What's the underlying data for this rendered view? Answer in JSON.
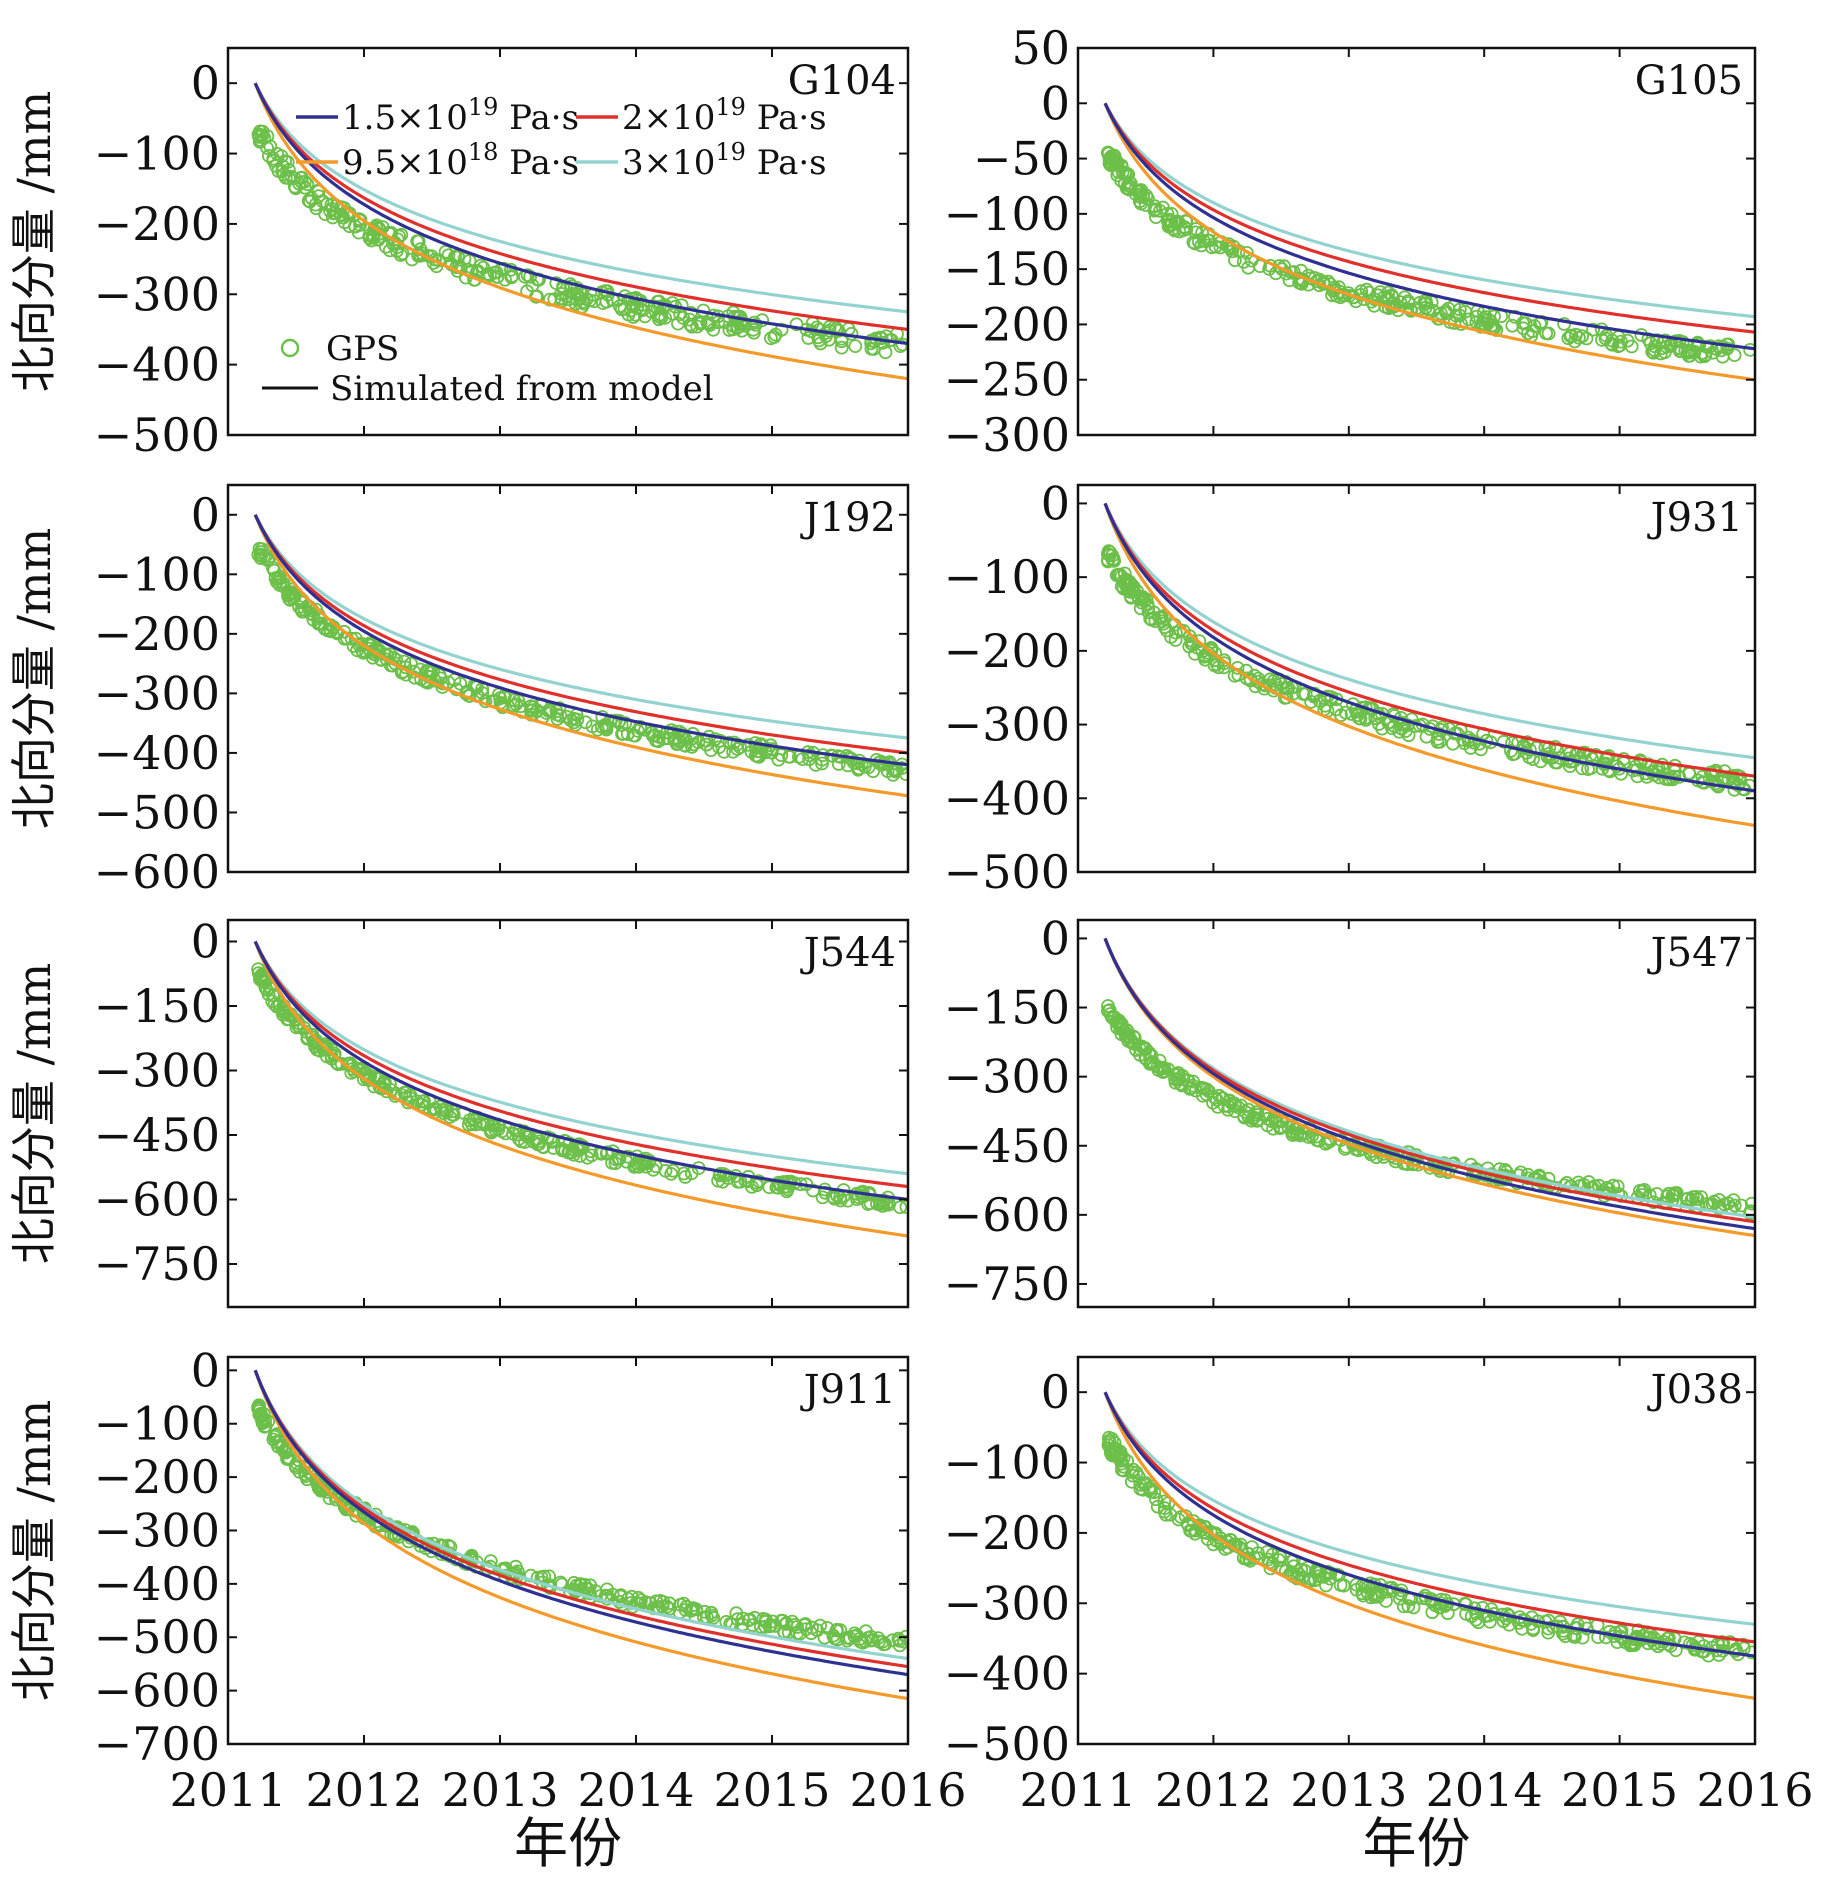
{
  "chart_data": {
    "type": "line",
    "xlabel": "年份",
    "ylabel": "北向分量 /mm",
    "x_ticks": [
      "2011",
      "2012",
      "2013",
      "2014",
      "2015",
      "2016"
    ],
    "xlim": [
      2011,
      2016
    ],
    "event_start": 2011.2,
    "legend": {
      "placement": "top-left of panel G104",
      "entries": [
        {
          "key": "v15e19",
          "base": "1.5×10",
          "exp": "19",
          "unit": " Pa·s",
          "color": "#2e3192"
        },
        {
          "key": "v2e19",
          "base": "2×10",
          "exp": "19",
          "unit": " Pa·s",
          "color": "#e0302c"
        },
        {
          "key": "v95e18",
          "base": "9.5×10",
          "exp": "18",
          "unit": " Pa·s",
          "color": "#f39a2b"
        },
        {
          "key": "v3e19",
          "base": "3×10",
          "exp": "19",
          "unit": " Pa·s",
          "color": "#93d3cf"
        },
        {
          "key": "gps",
          "label": "GPS",
          "color": "#6cc04a"
        },
        {
          "key": "model",
          "label": "Simulated from model",
          "color": "#111111"
        }
      ]
    },
    "panels": [
      {
        "name": "G104",
        "yticks": [
          0,
          -100,
          -200,
          -300,
          -400,
          -500
        ],
        "ylim": [
          -500,
          50
        ],
        "series": {
          "v15e19": -370,
          "v2e19": -350,
          "v95e18": -420,
          "v3e19": -325
        },
        "gps": {
          "start": -60,
          "end": -372,
          "scatter": 15
        }
      },
      {
        "name": "G105",
        "yticks": [
          50,
          0,
          -50,
          -100,
          -150,
          -200,
          -250,
          -300
        ],
        "ylim": [
          -300,
          50
        ],
        "series": {
          "v15e19": -222,
          "v2e19": -207,
          "v95e18": -250,
          "v3e19": -193
        },
        "gps": {
          "start": -40,
          "end": -228,
          "scatter": 8
        }
      },
      {
        "name": "J192",
        "yticks": [
          0,
          -100,
          -200,
          -300,
          -400,
          -500,
          -600
        ],
        "ylim": [
          -600,
          50
        ],
        "series": {
          "v15e19": -420,
          "v2e19": -400,
          "v95e18": -472,
          "v3e19": -375
        },
        "gps": {
          "start": -45,
          "end": -428,
          "scatter": 12
        }
      },
      {
        "name": "J931",
        "yticks": [
          0,
          -100,
          -200,
          -300,
          -400,
          -500
        ],
        "ylim": [
          -500,
          25
        ],
        "series": {
          "v15e19": -390,
          "v2e19": -370,
          "v95e18": -437,
          "v3e19": -345
        },
        "gps": {
          "start": -60,
          "end": -380,
          "scatter": 12
        }
      },
      {
        "name": "J544",
        "yticks": [
          0,
          -150,
          -300,
          -450,
          -600,
          -750
        ],
        "ylim": [
          -850,
          50
        ],
        "series": {
          "v15e19": -600,
          "v2e19": -570,
          "v95e18": -685,
          "v3e19": -540
        },
        "gps": {
          "start": -55,
          "end": -608,
          "scatter": 14
        }
      },
      {
        "name": "J547",
        "yticks": [
          0,
          -150,
          -300,
          -450,
          -600,
          -750
        ],
        "ylim": [
          -800,
          40
        ],
        "series": {
          "v15e19": -630,
          "v2e19": -615,
          "v95e18": -645,
          "v3e19": -605
        },
        "gps": {
          "start": -140,
          "end": -585,
          "scatter": 14
        }
      },
      {
        "name": "J911",
        "yticks": [
          0,
          -100,
          -200,
          -300,
          -400,
          -500,
          -600,
          -700
        ],
        "ylim": [
          -700,
          25
        ],
        "series": {
          "v15e19": -570,
          "v2e19": -555,
          "v95e18": -615,
          "v3e19": -540
        },
        "gps": {
          "start": -60,
          "end": -510,
          "scatter": 12
        }
      },
      {
        "name": "J038",
        "yticks": [
          0,
          -100,
          -200,
          -300,
          -400,
          -500
        ],
        "ylim": [
          -500,
          50
        ],
        "series": {
          "v15e19": -375,
          "v2e19": -355,
          "v95e18": -435,
          "v3e19": -330
        },
        "gps": {
          "start": -60,
          "end": -370,
          "scatter": 12
        }
      }
    ]
  }
}
